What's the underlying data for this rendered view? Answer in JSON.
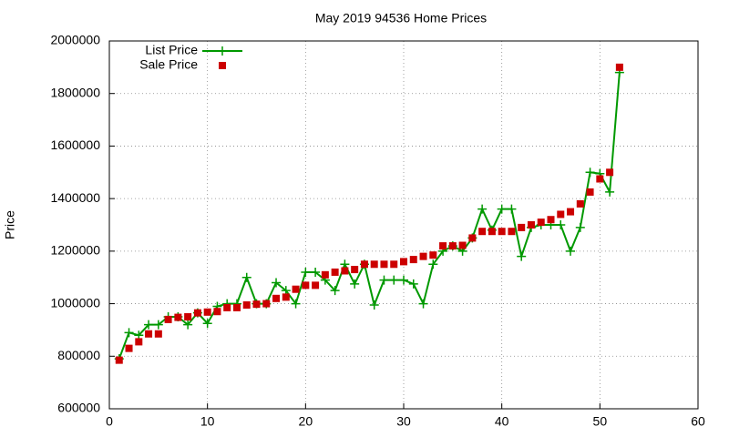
{
  "chart_data": {
    "type": "line",
    "title": "May 2019 94536 Home Prices",
    "ylabel": "Price",
    "x": [
      1,
      2,
      3,
      4,
      5,
      6,
      7,
      8,
      9,
      10,
      11,
      12,
      13,
      14,
      15,
      16,
      17,
      18,
      19,
      20,
      21,
      22,
      23,
      24,
      25,
      26,
      27,
      28,
      29,
      30,
      31,
      32,
      33,
      34,
      35,
      36,
      37,
      38,
      39,
      40,
      41,
      42,
      43,
      44,
      45,
      46,
      47,
      48,
      49,
      50,
      51,
      52
    ],
    "series": [
      {
        "name": "List Price",
        "color": "#009900",
        "style": "linespoints",
        "marker": "plus",
        "values": [
          790000,
          890000,
          880000,
          920000,
          920000,
          950000,
          950000,
          920000,
          965000,
          925000,
          990000,
          1000000,
          1000000,
          1100000,
          1000000,
          1000000,
          1080000,
          1050000,
          1000000,
          1120000,
          1120000,
          1090000,
          1050000,
          1150000,
          1075000,
          1150000,
          995000,
          1090000,
          1090000,
          1090000,
          1075000,
          1000000,
          1150000,
          1200000,
          1220000,
          1200000,
          1250000,
          1360000,
          1280000,
          1360000,
          1360000,
          1180000,
          1290000,
          1300000,
          1300000,
          1300000,
          1200000,
          1290000,
          1500000,
          1495000,
          1425000,
          1880000
        ]
      },
      {
        "name": "Sale Price",
        "color": "#cc0000",
        "style": "points",
        "marker": "square",
        "values": [
          785000,
          830000,
          855000,
          885000,
          885000,
          940000,
          948000,
          950000,
          965000,
          968000,
          970000,
          985000,
          985000,
          995000,
          998000,
          1000000,
          1020000,
          1025000,
          1055000,
          1070000,
          1070000,
          1110000,
          1120000,
          1125000,
          1130000,
          1150000,
          1150000,
          1150000,
          1150000,
          1160000,
          1168000,
          1180000,
          1185000,
          1220000,
          1220000,
          1222000,
          1250000,
          1275000,
          1275000,
          1275000,
          1275000,
          1290000,
          1300000,
          1310000,
          1320000,
          1340000,
          1350000,
          1380000,
          1425000,
          1475000,
          1500000,
          1900000
        ]
      }
    ],
    "xlim": [
      0,
      60
    ],
    "xticks": [
      0,
      10,
      20,
      30,
      40,
      50,
      60
    ],
    "ylim": [
      600000,
      2000000
    ],
    "yticks": [
      600000,
      800000,
      1000000,
      1200000,
      1400000,
      1600000,
      1800000,
      2000000
    ],
    "grid": true,
    "legend": "top-left"
  }
}
